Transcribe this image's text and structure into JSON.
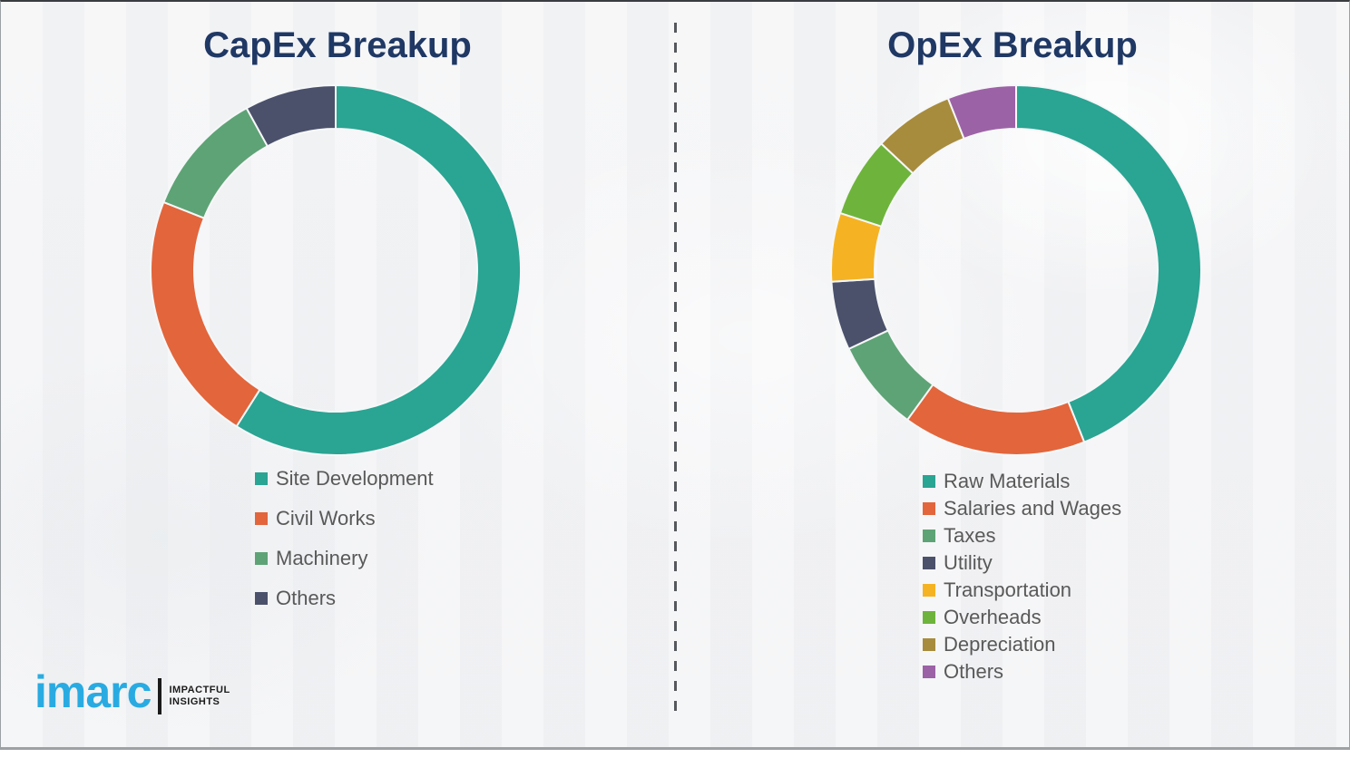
{
  "chart_data": [
    {
      "type": "pie",
      "donut": true,
      "title": "CapEx Breakup",
      "labels": [
        "Site Development",
        "Civil Works",
        "Machinery",
        "Others"
      ],
      "values": [
        59,
        22,
        11,
        8
      ],
      "colors": [
        "#2aa493",
        "#e2653c",
        "#5ea376",
        "#4b516b"
      ],
      "legend_position": "bottom-left",
      "start_angle_deg": 0,
      "direction": "clockwise"
    },
    {
      "type": "pie",
      "donut": true,
      "title": "OpEx Breakup",
      "labels": [
        "Raw Materials",
        "Salaries and Wages",
        "Taxes",
        "Utility",
        "Transportation",
        "Overheads",
        "Depreciation",
        "Others"
      ],
      "values": [
        44,
        16,
        8,
        6,
        6,
        7,
        7,
        6
      ],
      "colors": [
        "#2aa493",
        "#e2653c",
        "#5ea376",
        "#4b516b",
        "#f5b323",
        "#6eb43c",
        "#a78c3d",
        "#9c62a6"
      ],
      "legend_position": "bottom-left",
      "start_angle_deg": 0,
      "direction": "clockwise"
    }
  ],
  "styles": {
    "title_color": "#1f3864",
    "legend_text_color": "#595959",
    "slice_separator_color": "#f6f7f8"
  },
  "logo": {
    "brand": "imarc",
    "tagline_line1": "IMPACTFUL",
    "tagline_line2": "INSIGHTS",
    "brand_color": "#29abe2"
  }
}
